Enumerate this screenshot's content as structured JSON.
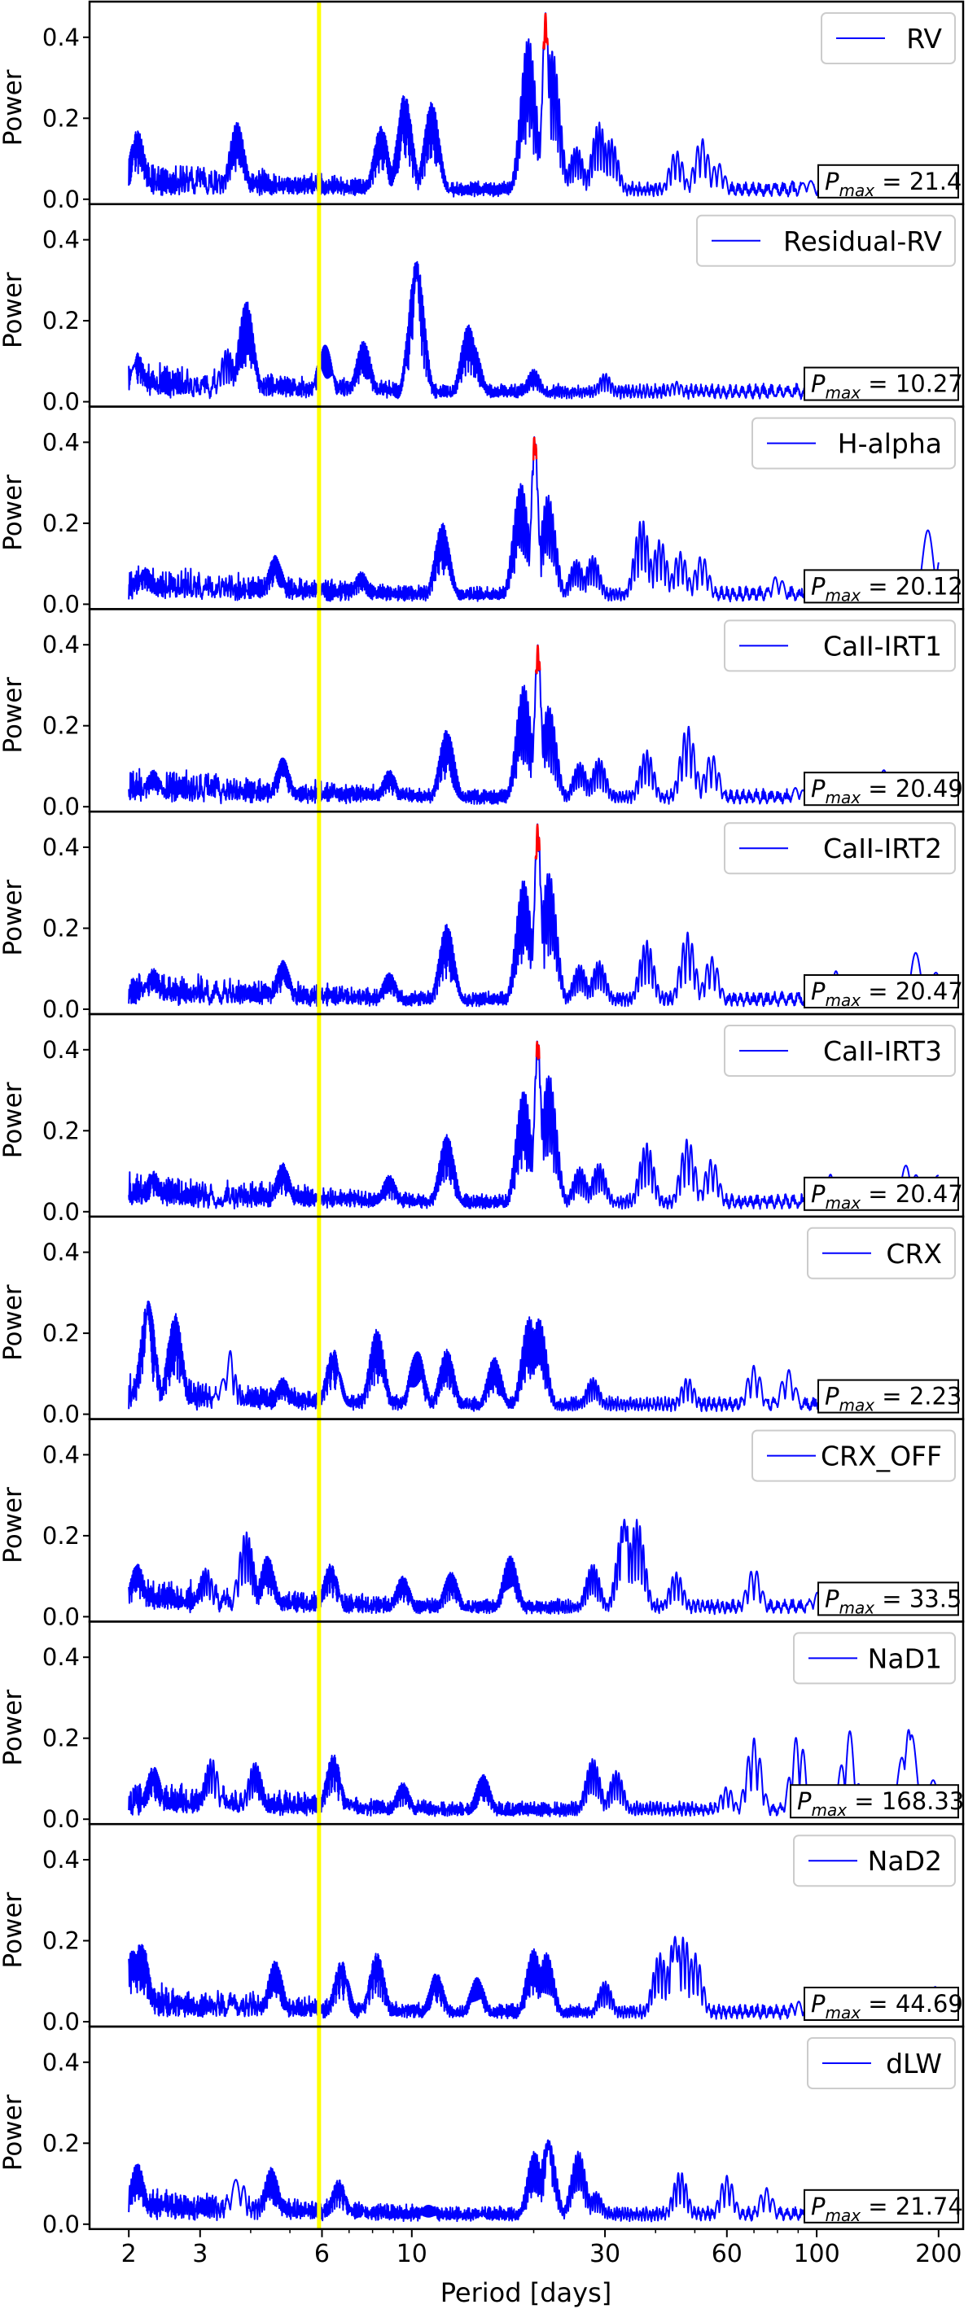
{
  "chart_data": {
    "type": "line",
    "x_scale": "log",
    "xlabel": "Period [days]",
    "ylabel": "Power",
    "xlim": [
      1.6,
      230
    ],
    "ylim": [
      0,
      0.48
    ],
    "xticks": [
      2,
      3,
      6,
      10,
      30,
      60,
      100,
      200
    ],
    "xtick_labels": [
      "2",
      "3",
      "6",
      "10",
      "30",
      "60",
      "100",
      "200"
    ],
    "yticks": [
      0.0,
      0.2,
      0.4
    ],
    "ytick_labels": [
      "0.0",
      "0.2",
      "0.4"
    ],
    "highlight": {
      "period": 5.9,
      "color": "#ffff00"
    },
    "colors": {
      "line": "#0000ff",
      "peak": "#ff0000",
      "highlight": "#ffff00"
    },
    "panels": [
      {
        "legend": "RV",
        "pmax_value": "21.4",
        "peak_period": 21.4,
        "peak_power": 0.46,
        "has_red_peak": true,
        "features": [
          [
            2.1,
            0.17
          ],
          [
            3.7,
            0.19
          ],
          [
            8.4,
            0.18
          ],
          [
            9.6,
            0.26
          ],
          [
            11.2,
            0.24
          ],
          [
            19.4,
            0.4
          ],
          [
            22.2,
            0.37
          ],
          [
            25.5,
            0.13
          ],
          [
            29,
            0.19
          ],
          [
            31,
            0.15
          ],
          [
            45,
            0.12
          ],
          [
            52,
            0.15
          ],
          [
            57,
            0.09
          ],
          [
            95,
            0.05
          ],
          [
            200,
            0.06
          ]
        ]
      },
      {
        "legend": "Residual-RV",
        "pmax_value": "10.27",
        "peak_period": 10.27,
        "peak_power": 0.35,
        "has_red_peak": false,
        "features": [
          [
            2.1,
            0.12
          ],
          [
            3.5,
            0.13
          ],
          [
            3.9,
            0.25
          ],
          [
            6.1,
            0.14
          ],
          [
            7.6,
            0.15
          ],
          [
            10.27,
            0.35
          ],
          [
            13.8,
            0.19
          ],
          [
            14.2,
            0.14
          ],
          [
            20,
            0.08
          ],
          [
            30,
            0.07
          ],
          [
            45,
            0.05
          ],
          [
            100,
            0.02
          ],
          [
            200,
            0.05
          ]
        ]
      },
      {
        "legend": "H-alpha",
        "pmax_value": "20.12",
        "peak_period": 20.12,
        "peak_power": 0.42,
        "has_red_peak": true,
        "features": [
          [
            2.2,
            0.09
          ],
          [
            4.6,
            0.12
          ],
          [
            7.5,
            0.08
          ],
          [
            11.9,
            0.2
          ],
          [
            18.6,
            0.3
          ],
          [
            21.7,
            0.27
          ],
          [
            25.5,
            0.11
          ],
          [
            28,
            0.12
          ],
          [
            37,
            0.21
          ],
          [
            41,
            0.16
          ],
          [
            46,
            0.13
          ],
          [
            52,
            0.12
          ],
          [
            80,
            0.07
          ],
          [
            190,
            0.19
          ],
          [
            200,
            0.17
          ]
        ]
      },
      {
        "legend": "CaII-IRT1",
        "pmax_value": "20.49",
        "peak_period": 20.49,
        "peak_power": 0.4,
        "has_red_peak": true,
        "features": [
          [
            2.3,
            0.09
          ],
          [
            4.8,
            0.12
          ],
          [
            8.8,
            0.09
          ],
          [
            12.2,
            0.19
          ],
          [
            18.9,
            0.3
          ],
          [
            21.8,
            0.25
          ],
          [
            26,
            0.11
          ],
          [
            29,
            0.12
          ],
          [
            38,
            0.14
          ],
          [
            48,
            0.2
          ],
          [
            55,
            0.13
          ],
          [
            90,
            0.05
          ],
          [
            150,
            0.11
          ],
          [
            200,
            0.11
          ]
        ]
      },
      {
        "legend": "CaII-IRT2",
        "pmax_value": "20.47",
        "peak_period": 20.47,
        "peak_power": 0.46,
        "has_red_peak": true,
        "features": [
          [
            2.3,
            0.1
          ],
          [
            4.8,
            0.12
          ],
          [
            8.8,
            0.09
          ],
          [
            12.2,
            0.21
          ],
          [
            18.9,
            0.32
          ],
          [
            21.8,
            0.34
          ],
          [
            26,
            0.11
          ],
          [
            29,
            0.12
          ],
          [
            38,
            0.17
          ],
          [
            48,
            0.19
          ],
          [
            55,
            0.13
          ],
          [
            110,
            0.1
          ],
          [
            175,
            0.14
          ],
          [
            200,
            0.1
          ]
        ]
      },
      {
        "legend": "CaII-IRT3",
        "pmax_value": "20.47",
        "peak_period": 20.47,
        "peak_power": 0.43,
        "has_red_peak": true,
        "features": [
          [
            2.3,
            0.1
          ],
          [
            4.8,
            0.12
          ],
          [
            8.8,
            0.09
          ],
          [
            12.2,
            0.19
          ],
          [
            18.9,
            0.3
          ],
          [
            21.8,
            0.34
          ],
          [
            26,
            0.11
          ],
          [
            29,
            0.12
          ],
          [
            38,
            0.17
          ],
          [
            48,
            0.18
          ],
          [
            55,
            0.13
          ],
          [
            110,
            0.1
          ],
          [
            170,
            0.14
          ],
          [
            200,
            0.09
          ]
        ]
      },
      {
        "legend": "CRX",
        "pmax_value": "2.23",
        "peak_period": 2.23,
        "peak_power": 0.28,
        "has_red_peak": false,
        "features": [
          [
            2.23,
            0.28
          ],
          [
            2.6,
            0.25
          ],
          [
            3.5,
            0.17
          ],
          [
            4.8,
            0.09
          ],
          [
            6.4,
            0.16
          ],
          [
            8.2,
            0.21
          ],
          [
            10.3,
            0.16
          ],
          [
            12.2,
            0.16
          ],
          [
            16,
            0.14
          ],
          [
            19.5,
            0.24
          ],
          [
            20.6,
            0.24
          ],
          [
            28,
            0.09
          ],
          [
            48,
            0.09
          ],
          [
            70,
            0.12
          ],
          [
            85,
            0.11
          ],
          [
            200,
            0.06
          ]
        ]
      },
      {
        "legend": "CRX_OFF",
        "pmax_value": "33.5",
        "peak_period": 33.5,
        "peak_power": 0.24,
        "has_red_peak": false,
        "features": [
          [
            2.1,
            0.13
          ],
          [
            3.1,
            0.12
          ],
          [
            3.9,
            0.21
          ],
          [
            4.4,
            0.15
          ],
          [
            6.3,
            0.13
          ],
          [
            9.5,
            0.1
          ],
          [
            12.5,
            0.11
          ],
          [
            17.5,
            0.15
          ],
          [
            28,
            0.13
          ],
          [
            33.5,
            0.24
          ],
          [
            36,
            0.24
          ],
          [
            45,
            0.11
          ],
          [
            70,
            0.12
          ],
          [
            100,
            0.06
          ],
          [
            200,
            0.05
          ]
        ]
      },
      {
        "legend": "NaD1",
        "pmax_value": "168.33",
        "peak_period": 168.33,
        "peak_power": 0.24,
        "has_red_peak": false,
        "features": [
          [
            2.3,
            0.13
          ],
          [
            3.2,
            0.15
          ],
          [
            4.1,
            0.14
          ],
          [
            6.4,
            0.16
          ],
          [
            9.5,
            0.09
          ],
          [
            15,
            0.11
          ],
          [
            28,
            0.15
          ],
          [
            32,
            0.12
          ],
          [
            60,
            0.08
          ],
          [
            70,
            0.2
          ],
          [
            90,
            0.21
          ],
          [
            120,
            0.22
          ],
          [
            168.33,
            0.24
          ],
          [
            200,
            0.14
          ]
        ]
      },
      {
        "legend": "NaD2",
        "pmax_value": "44.69",
        "peak_period": 44.69,
        "peak_power": 0.21,
        "has_red_peak": false,
        "features": [
          [
            2.05,
            0.18
          ],
          [
            2.15,
            0.2
          ],
          [
            4.6,
            0.15
          ],
          [
            6.7,
            0.15
          ],
          [
            8.2,
            0.17
          ],
          [
            11.5,
            0.12
          ],
          [
            14.5,
            0.11
          ],
          [
            20,
            0.18
          ],
          [
            21.5,
            0.17
          ],
          [
            30,
            0.1
          ],
          [
            41,
            0.17
          ],
          [
            44.69,
            0.21
          ],
          [
            47,
            0.21
          ],
          [
            50,
            0.17
          ],
          [
            90,
            0.05
          ],
          [
            200,
            0.1
          ]
        ]
      },
      {
        "legend": "dLW",
        "pmax_value": "21.74",
        "peak_period": 21.74,
        "peak_power": 0.21,
        "has_red_peak": false,
        "features": [
          [
            2.1,
            0.15
          ],
          [
            3.7,
            0.14
          ],
          [
            4.5,
            0.14
          ],
          [
            6.6,
            0.11
          ],
          [
            11,
            0.05
          ],
          [
            20.1,
            0.18
          ],
          [
            21.74,
            0.21
          ],
          [
            25.8,
            0.18
          ],
          [
            28.5,
            0.08
          ],
          [
            46,
            0.13
          ],
          [
            60,
            0.12
          ],
          [
            75,
            0.09
          ],
          [
            160,
            0.09
          ],
          [
            200,
            0.05
          ]
        ]
      }
    ]
  }
}
